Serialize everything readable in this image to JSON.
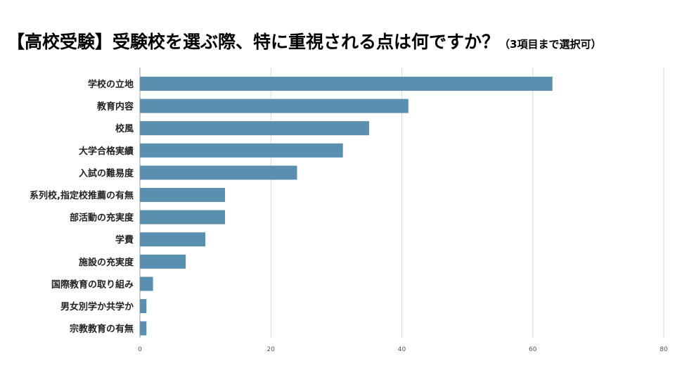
{
  "title": {
    "main": "【高校受験】受験校を選ぶ際、特に重視される点は何ですか？",
    "sub": "（3項目まで選択可）"
  },
  "chart_data": {
    "type": "bar",
    "orientation": "horizontal",
    "categories": [
      "学校の立地",
      "教育内容",
      "校風",
      "大学合格実績",
      "入試の難易度",
      "系列校,指定校推薦の有無",
      "部活動の充実度",
      "学費",
      "施設の充実度",
      "国際教育の取り組み",
      "男女別学か共学か",
      "宗教教育の有無"
    ],
    "values": [
      63,
      41,
      35,
      31,
      24,
      13,
      13,
      10,
      7,
      2,
      1,
      1
    ],
    "xlim": [
      0,
      80
    ],
    "xticks": [
      0,
      20,
      40,
      60,
      80
    ],
    "bar_color": "#5a8faf",
    "grid_color": "#d9d9d9",
    "grid": true,
    "legend": "none"
  }
}
